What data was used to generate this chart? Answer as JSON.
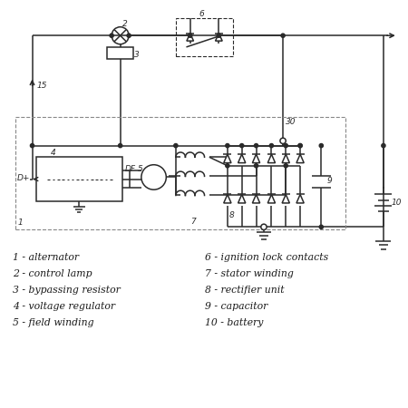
{
  "background": "#ffffff",
  "line_color": "#2a2a2a",
  "legend": [
    "1 - alternator",
    "2 - control lamp",
    "3 - bypassing resistor",
    "4 - voltage regulator",
    "5 - field winding",
    "6 - ignition lock contacts",
    "7 - stator winding",
    "8 - rectifier unit",
    "9 - capacitor",
    "10 - battery"
  ],
  "figsize": [
    4.5,
    4.5
  ],
  "dpi": 100
}
